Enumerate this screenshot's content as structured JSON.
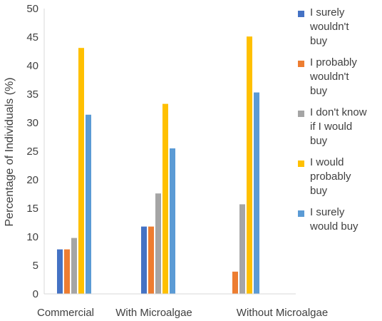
{
  "chart_data": {
    "type": "bar",
    "ylabel": "Percentage of Individuals (%)",
    "ylim": [
      0,
      50
    ],
    "yticks": [
      0,
      5,
      10,
      15,
      20,
      25,
      30,
      35,
      40,
      45,
      50
    ],
    "grid": false,
    "legend_position": "right",
    "categories": [
      "Commercial",
      "With Microalgae",
      "Without Microalgae"
    ],
    "series": [
      {
        "name": "I surely wouldn't buy",
        "color": "#4472C4",
        "values": [
          7.8,
          11.8,
          0
        ]
      },
      {
        "name": "I probably wouldn't buy",
        "color": "#ED7D31",
        "values": [
          7.8,
          11.8,
          3.9
        ]
      },
      {
        "name": "I don't know if I would buy",
        "color": "#A5A5A5",
        "values": [
          9.8,
          17.6,
          15.7
        ]
      },
      {
        "name": "I would probably buy",
        "color": "#FFC000",
        "values": [
          43.1,
          33.3,
          45.1
        ]
      },
      {
        "name": "I surely would buy",
        "color": "#5B9BD5",
        "values": [
          31.4,
          25.5,
          35.3
        ]
      }
    ]
  },
  "legend_labels": [
    "I surely\nwouldn't\nbuy",
    "I probably\nwouldn't\nbuy",
    "I don't know\nif I would\nbuy",
    "I would\nprobably\nbuy",
    "I surely\nwould buy"
  ]
}
